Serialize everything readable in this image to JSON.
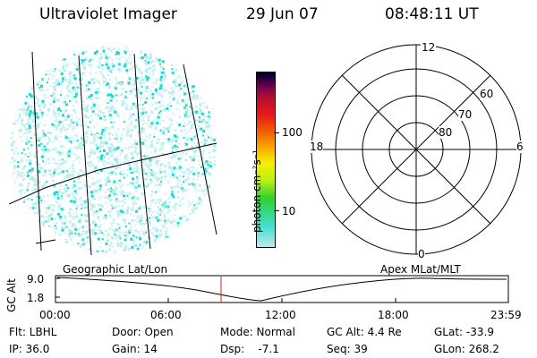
{
  "header": {
    "title": "Ultraviolet Imager",
    "date": "29 Jun 07",
    "time": "08:48:11 UT"
  },
  "colors": {
    "map_dot_primary": "#18d8d8",
    "map_dot_light": "#b8ecec",
    "timeline_marker": "#cc2020",
    "colorbar_stops": [
      "#c0e8ec",
      "#40e0d0",
      "#30d030",
      "#b8f018",
      "#f8f000",
      "#f8a000",
      "#f06000",
      "#e81818",
      "#b01030",
      "#700050",
      "#300040",
      "#000020"
    ]
  },
  "colorbar": {
    "unit_label": "photon cm⁻²s⁻¹",
    "ticks": [
      "10",
      "100"
    ]
  },
  "polar": {
    "mlt_labels": {
      "top": "12",
      "left": "18",
      "right": "6",
      "bottom": "0"
    },
    "lat_labels": [
      "60",
      "70",
      "80"
    ]
  },
  "timeline": {
    "left_label": "Geographic Lat/Lon",
    "right_label": "Apex MLat/MLT",
    "axis_label": "GC Alt",
    "y_ticks": [
      "9.0",
      "1.8"
    ],
    "x_ticks": [
      "00:00",
      "06:00",
      "12:00",
      "18:00",
      "23:59"
    ]
  },
  "info": {
    "flt": "Flt: LBHL",
    "door": "Door: Open",
    "mode": "Mode: Normal",
    "gc_alt": "GC Alt: 4.4 Re",
    "glat": "GLat: -33.9",
    "ip": "IP: 36.0",
    "gain": "Gain: 14",
    "dsp": "Dsp:    -7.1",
    "seq": "Seq: 39",
    "glon": "GLon: 268.2"
  }
}
